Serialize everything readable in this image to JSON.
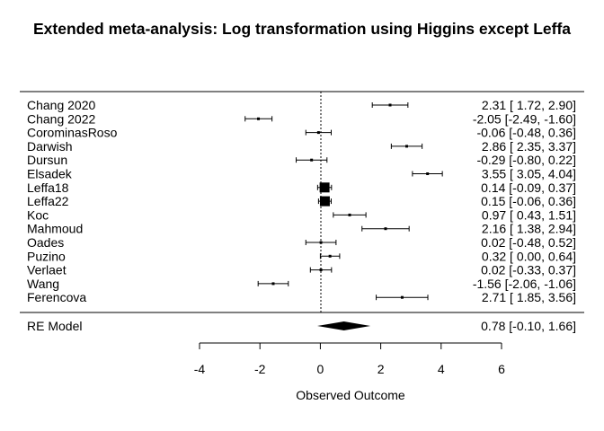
{
  "chart_data": {
    "type": "forest",
    "title": "Extended meta-analysis: Log transformation using Higgins except Leffa",
    "xlabel": "Observed Outcome",
    "xlim": [
      -4,
      6
    ],
    "xticks": [
      -4,
      -2,
      0,
      2,
      4,
      6
    ],
    "xtick_labels": [
      "-4",
      "-2",
      "0",
      "2",
      "4",
      "6"
    ],
    "reference_line": 0,
    "studies": [
      {
        "name": "Chang 2020",
        "est": 2.31,
        "lo": 1.72,
        "hi": 2.9,
        "ci_text": "2.31 [ 1.72,  2.90]",
        "weight_size": 3
      },
      {
        "name": "Chang 2022",
        "est": -2.05,
        "lo": -2.49,
        "hi": -1.6,
        "ci_text": "-2.05 [-2.49, -1.60]",
        "weight_size": 3
      },
      {
        "name": "CorominasRoso",
        "est": -0.06,
        "lo": -0.48,
        "hi": 0.36,
        "ci_text": "-0.06 [-0.48,  0.36]",
        "weight_size": 3
      },
      {
        "name": "Darwish",
        "est": 2.86,
        "lo": 2.35,
        "hi": 3.37,
        "ci_text": "2.86 [ 2.35,  3.37]",
        "weight_size": 3
      },
      {
        "name": "Dursun",
        "est": -0.29,
        "lo": -0.8,
        "hi": 0.22,
        "ci_text": "-0.29 [-0.80,  0.22]",
        "weight_size": 3
      },
      {
        "name": "Elsadek",
        "est": 3.55,
        "lo": 3.05,
        "hi": 4.04,
        "ci_text": "3.55 [ 3.05,  4.04]",
        "weight_size": 3
      },
      {
        "name": "Leffa18",
        "est": 0.14,
        "lo": -0.09,
        "hi": 0.37,
        "ci_text": "0.14 [-0.09,  0.37]",
        "weight_size": 11
      },
      {
        "name": "Leffa22",
        "est": 0.15,
        "lo": -0.06,
        "hi": 0.36,
        "ci_text": "0.15 [-0.06,  0.36]",
        "weight_size": 11
      },
      {
        "name": "Koc",
        "est": 0.97,
        "lo": 0.43,
        "hi": 1.51,
        "ci_text": "0.97 [ 0.43,  1.51]",
        "weight_size": 3
      },
      {
        "name": "Mahmoud",
        "est": 2.16,
        "lo": 1.38,
        "hi": 2.94,
        "ci_text": "2.16 [ 1.38,  2.94]",
        "weight_size": 3
      },
      {
        "name": "Oades",
        "est": 0.02,
        "lo": -0.48,
        "hi": 0.52,
        "ci_text": "0.02 [-0.48,  0.52]",
        "weight_size": 3
      },
      {
        "name": "Puzino",
        "est": 0.32,
        "lo": 0.0,
        "hi": 0.64,
        "ci_text": "0.32 [ 0.00,  0.64]",
        "weight_size": 3
      },
      {
        "name": "Verlaet",
        "est": 0.02,
        "lo": -0.33,
        "hi": 0.37,
        "ci_text": "0.02 [-0.33,  0.37]",
        "weight_size": 3
      },
      {
        "name": "Wang",
        "est": -1.56,
        "lo": -2.06,
        "hi": -1.06,
        "ci_text": "-1.56 [-2.06, -1.06]",
        "weight_size": 3
      },
      {
        "name": "Ferencova",
        "est": 2.71,
        "lo": 1.85,
        "hi": 3.56,
        "ci_text": "2.71 [ 1.85,  3.56]",
        "weight_size": 3
      }
    ],
    "summary": {
      "name": "RE Model",
      "est": 0.78,
      "lo": -0.1,
      "hi": 1.66,
      "ci_text": "0.78 [-0.10,  1.66]"
    }
  }
}
